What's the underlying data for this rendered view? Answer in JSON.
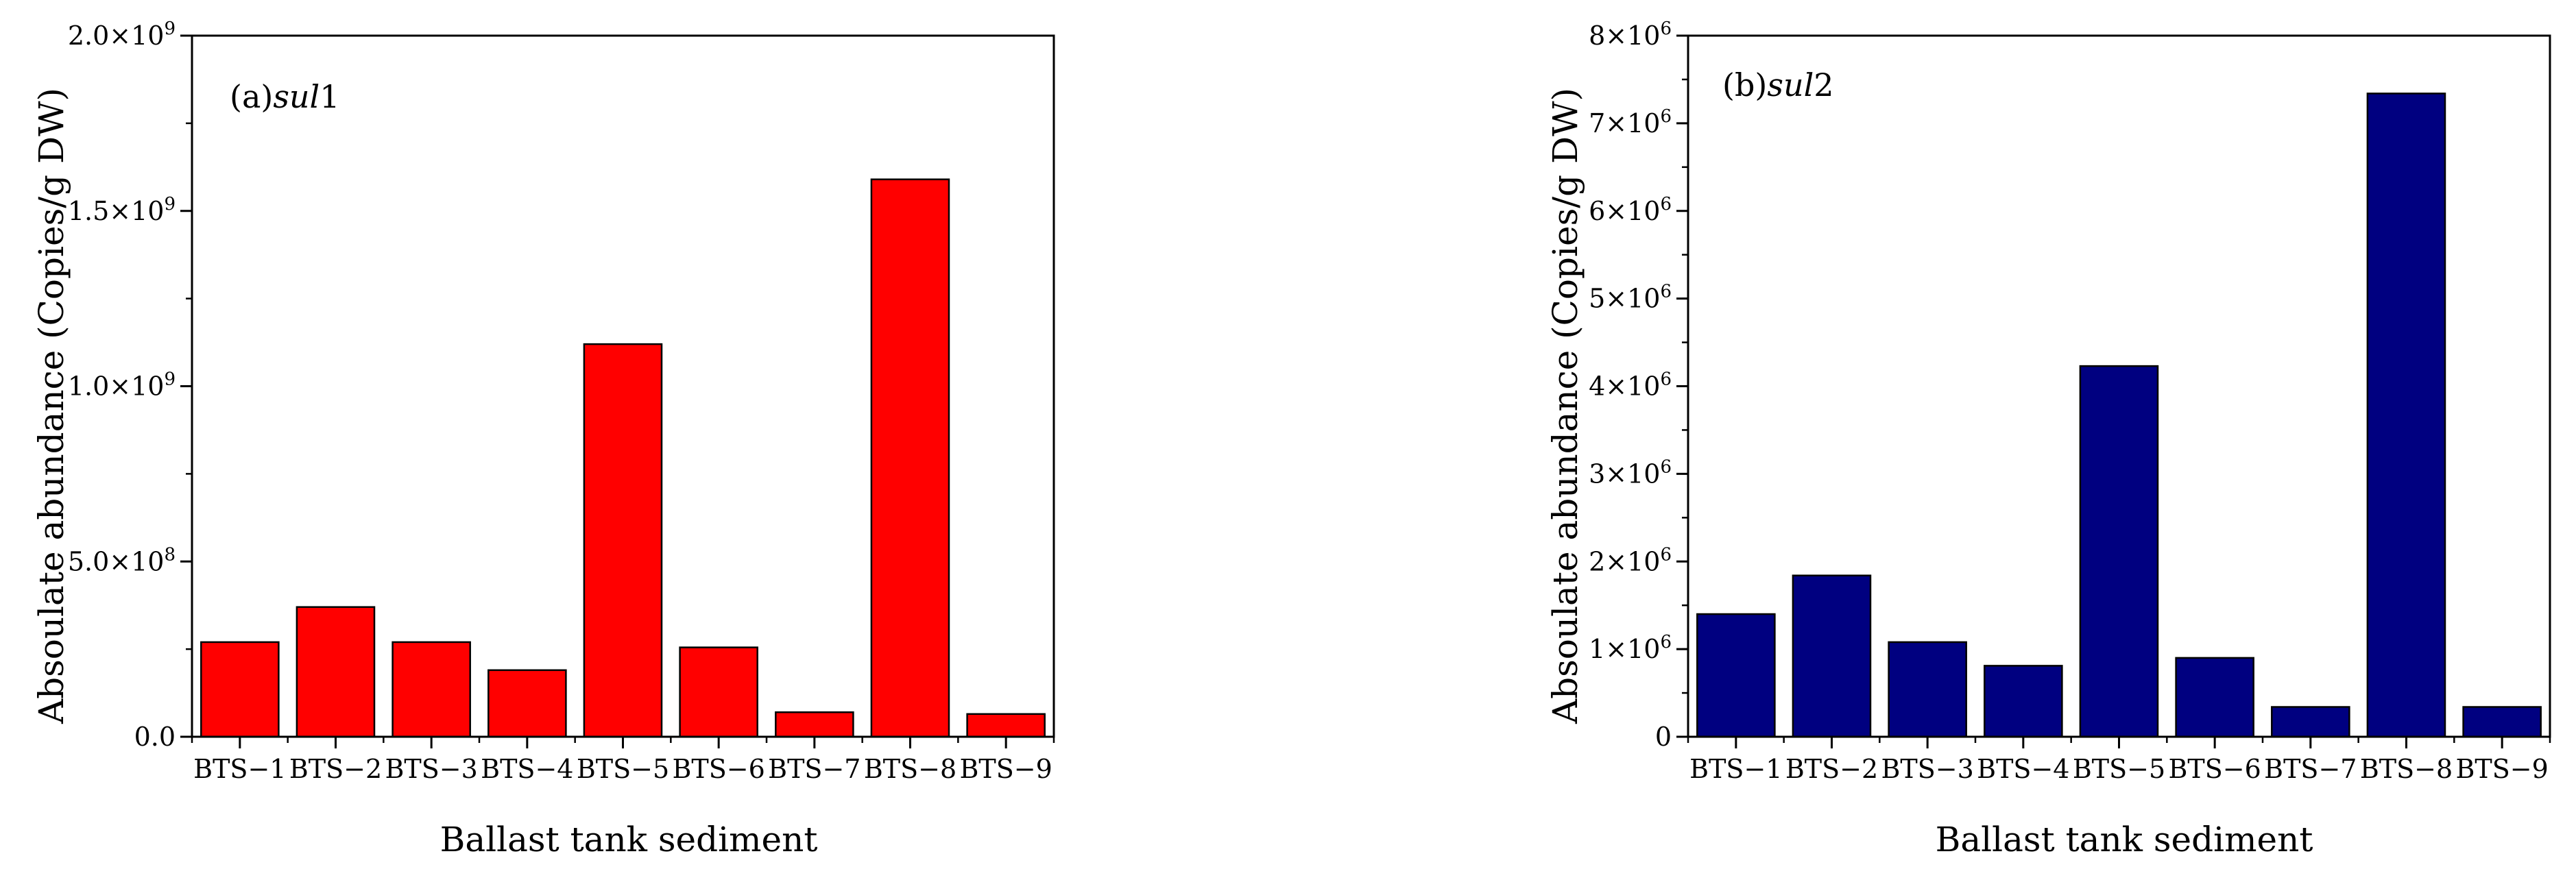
{
  "chart_data": [
    {
      "type": "bar",
      "panel_prefix": "(a)",
      "panel_gene": "sul",
      "panel_number": "1",
      "categories": [
        "BTS−1",
        "BTS−2",
        "BTS−3",
        "BTS−4",
        "BTS−5",
        "BTS−6",
        "BTS−7",
        "BTS−8",
        "BTS−9"
      ],
      "values": [
        270000000,
        370000000,
        270000000,
        190000000,
        1120000000,
        255000000,
        70000000,
        1590000000,
        65000000
      ],
      "xlabel": "Ballast tank sediment",
      "ylabel": "Absoulate abundance (Copies/g DW)",
      "ylim": [
        0,
        2000000000
      ],
      "yticks": [
        {
          "value": 0,
          "mantissa": "0.0",
          "times": "",
          "base": "",
          "exp": ""
        },
        {
          "value": 500000000,
          "mantissa": "5.0",
          "times": "×",
          "base": "10",
          "exp": "8"
        },
        {
          "value": 1000000000,
          "mantissa": "1.0",
          "times": "×",
          "base": "10",
          "exp": "9"
        },
        {
          "value": 1500000000,
          "mantissa": "1.5",
          "times": "×",
          "base": "10",
          "exp": "9"
        },
        {
          "value": 2000000000,
          "mantissa": "2.0",
          "times": "×",
          "base": "10",
          "exp": "9"
        }
      ],
      "minor_tick_step": 250000000,
      "bar_color": "#ff0000",
      "grid": false,
      "legend": "none"
    },
    {
      "type": "bar",
      "panel_prefix": "(b)",
      "panel_gene": "sul",
      "panel_number": "2",
      "categories": [
        "BTS−1",
        "BTS−2",
        "BTS−3",
        "BTS−4",
        "BTS−5",
        "BTS−6",
        "BTS−7",
        "BTS−8",
        "BTS−9"
      ],
      "values": [
        1400000,
        1840000,
        1080000,
        810000,
        4230000,
        900000,
        340000,
        7340000,
        340000
      ],
      "xlabel": "Ballast tank sediment",
      "ylabel": "Absoulate abundance (Copies/g DW)",
      "ylim": [
        0,
        8000000
      ],
      "yticks": [
        {
          "value": 0,
          "mantissa": "0",
          "times": "",
          "base": "",
          "exp": ""
        },
        {
          "value": 1000000,
          "mantissa": "1",
          "times": "×",
          "base": "10",
          "exp": "6"
        },
        {
          "value": 2000000,
          "mantissa": "2",
          "times": "×",
          "base": "10",
          "exp": "6"
        },
        {
          "value": 3000000,
          "mantissa": "3",
          "times": "×",
          "base": "10",
          "exp": "6"
        },
        {
          "value": 4000000,
          "mantissa": "4",
          "times": "×",
          "base": "10",
          "exp": "6"
        },
        {
          "value": 5000000,
          "mantissa": "5",
          "times": "×",
          "base": "10",
          "exp": "6"
        },
        {
          "value": 6000000,
          "mantissa": "6",
          "times": "×",
          "base": "10",
          "exp": "6"
        },
        {
          "value": 7000000,
          "mantissa": "7",
          "times": "×",
          "base": "10",
          "exp": "6"
        },
        {
          "value": 8000000,
          "mantissa": "8",
          "times": "×",
          "base": "10",
          "exp": "6"
        }
      ],
      "minor_tick_step": 500000,
      "bar_color": "#000080",
      "grid": false,
      "legend": "none"
    }
  ]
}
